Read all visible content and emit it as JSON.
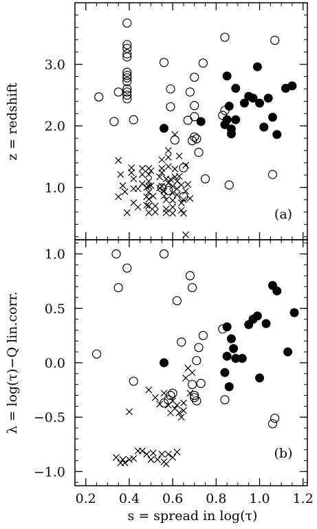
{
  "chart_data": [
    {
      "type": "scatter",
      "panel_label": "(a)",
      "ylabel": "z = redshift",
      "xlabel": "",
      "xlim": [
        0.15,
        1.22
      ],
      "ylim": [
        0.15,
        4.0
      ],
      "x_ticks": [
        0.2,
        0.4,
        0.6,
        0.8,
        1.0,
        1.2
      ],
      "y_ticks": [
        1.0,
        2.0,
        3.0
      ],
      "y_tick_labels": [
        "1.0",
        "2.0",
        "3.0"
      ],
      "series": [
        {
          "marker": "open-circle",
          "points": [
            [
              0.26,
              2.47
            ],
            [
              0.33,
              2.07
            ],
            [
              0.35,
              2.55
            ],
            [
              0.39,
              3.67
            ],
            [
              0.39,
              3.32
            ],
            [
              0.39,
              3.26
            ],
            [
              0.39,
              3.17
            ],
            [
              0.39,
              3.12
            ],
            [
              0.39,
              2.87
            ],
            [
              0.39,
              2.82
            ],
            [
              0.39,
              2.78
            ],
            [
              0.39,
              2.72
            ],
            [
              0.39,
              2.6
            ],
            [
              0.39,
              2.55
            ],
            [
              0.39,
              2.5
            ],
            [
              0.39,
              2.44
            ],
            [
              0.42,
              2.1
            ],
            [
              0.56,
              3.03
            ],
            [
              0.59,
              2.6
            ],
            [
              0.59,
              2.31
            ],
            [
              0.61,
              1.77
            ],
            [
              0.65,
              1.32
            ],
            [
              0.67,
              2.09
            ],
            [
              0.68,
              2.55
            ],
            [
              0.7,
              2.79
            ],
            [
              0.7,
              2.33
            ],
            [
              0.7,
              2.15
            ],
            [
              0.69,
              1.76
            ],
            [
              0.7,
              1.82
            ],
            [
              0.71,
              1.79
            ],
            [
              0.72,
              1.57
            ],
            [
              0.74,
              3.02
            ],
            [
              0.75,
              1.14
            ],
            [
              0.84,
              3.44
            ],
            [
              0.84,
              2.25
            ],
            [
              0.83,
              2.17
            ],
            [
              0.86,
              1.04
            ],
            [
              1.06,
              1.21
            ],
            [
              1.07,
              3.39
            ],
            [
              0.55,
              0.99
            ],
            [
              0.58,
              0.95
            ],
            [
              0.65,
              0.85
            ]
          ]
        },
        {
          "marker": "filled-circle",
          "points": [
            [
              0.56,
              1.96
            ],
            [
              0.73,
              2.07
            ],
            [
              0.85,
              2.81
            ],
            [
              0.85,
              2.1
            ],
            [
              0.86,
              2.32
            ],
            [
              0.84,
              2.02
            ],
            [
              0.87,
              1.95
            ],
            [
              0.87,
              1.87
            ],
            [
              0.89,
              2.1
            ],
            [
              0.89,
              2.61
            ],
            [
              0.93,
              2.37
            ],
            [
              0.95,
              2.48
            ],
            [
              0.97,
              2.45
            ],
            [
              0.99,
              2.96
            ],
            [
              1.0,
              2.37
            ],
            [
              1.02,
              1.98
            ],
            [
              1.04,
              2.45
            ],
            [
              1.06,
              2.14
            ],
            [
              1.08,
              1.86
            ],
            [
              1.12,
              2.61
            ],
            [
              1.15,
              2.65
            ]
          ]
        },
        {
          "marker": "cross",
          "points": [
            [
              0.35,
              1.44
            ],
            [
              0.36,
              1.21
            ],
            [
              0.35,
              0.85
            ],
            [
              0.37,
              1.03
            ],
            [
              0.38,
              0.93
            ],
            [
              0.39,
              0.59
            ],
            [
              0.41,
              1.32
            ],
            [
              0.41,
              1.24
            ],
            [
              0.42,
              1.14
            ],
            [
              0.42,
              0.98
            ],
            [
              0.42,
              0.75
            ],
            [
              0.44,
              0.98
            ],
            [
              0.44,
              0.68
            ],
            [
              0.46,
              1.31
            ],
            [
              0.46,
              1.21
            ],
            [
              0.46,
              1.06
            ],
            [
              0.48,
              1.0
            ],
            [
              0.48,
              0.85
            ],
            [
              0.48,
              0.71
            ],
            [
              0.49,
              1.31
            ],
            [
              0.49,
              1.21
            ],
            [
              0.49,
              1.1
            ],
            [
              0.49,
              1.02
            ],
            [
              0.49,
              0.92
            ],
            [
              0.49,
              0.81
            ],
            [
              0.49,
              0.7
            ],
            [
              0.49,
              0.59
            ],
            [
              0.5,
              1.27
            ],
            [
              0.5,
              1.03
            ],
            [
              0.51,
              0.86
            ],
            [
              0.52,
              0.7
            ],
            [
              0.52,
              0.6
            ],
            [
              0.54,
              1.17
            ],
            [
              0.54,
              0.99
            ],
            [
              0.55,
              1.45
            ],
            [
              0.55,
              1.31
            ],
            [
              0.55,
              1.24
            ],
            [
              0.55,
              1.02
            ],
            [
              0.56,
              0.94
            ],
            [
              0.56,
              0.86
            ],
            [
              0.57,
              1.14
            ],
            [
              0.57,
              0.8
            ],
            [
              0.57,
              0.65
            ],
            [
              0.57,
              0.59
            ],
            [
              0.58,
              1.6
            ],
            [
              0.58,
              1.49
            ],
            [
              0.58,
              1.34
            ],
            [
              0.58,
              1.07
            ],
            [
              0.59,
              1.13
            ],
            [
              0.6,
              1.02
            ],
            [
              0.6,
              0.91
            ],
            [
              0.6,
              0.79
            ],
            [
              0.6,
              0.68
            ],
            [
              0.6,
              0.58
            ],
            [
              0.61,
              1.3
            ],
            [
              0.61,
              1.17
            ],
            [
              0.62,
              1.1
            ],
            [
              0.62,
              0.98
            ],
            [
              0.62,
              0.88
            ],
            [
              0.63,
              1.18
            ],
            [
              0.64,
              1.04
            ],
            [
              0.64,
              0.75
            ],
            [
              0.64,
              0.63
            ],
            [
              0.65,
              0.8
            ],
            [
              0.65,
              0.58
            ],
            [
              0.66,
              0.94
            ],
            [
              0.66,
              0.23
            ],
            [
              0.67,
              1.05
            ],
            [
              0.68,
              0.82
            ],
            [
              0.66,
              1.36
            ],
            [
              0.63,
              1.51
            ],
            [
              0.61,
              1.86
            ]
          ]
        }
      ]
    },
    {
      "type": "scatter",
      "panel_label": "(b)",
      "ylabel": "λ = log(τ)−Q lin.corr.",
      "xlabel": "s = spread in log(τ)",
      "xlim": [
        0.15,
        1.22
      ],
      "ylim": [
        -1.13,
        1.13
      ],
      "x_ticks": [
        0.2,
        0.4,
        0.6,
        0.8,
        1.0,
        1.2
      ],
      "x_tick_labels": [
        "0.2",
        "0.4",
        "0.6",
        "0.8",
        "1.0",
        "1.2"
      ],
      "y_ticks": [
        -1.0,
        -0.5,
        0.0,
        0.5,
        1.0
      ],
      "y_tick_labels": [
        "−1.0",
        "−0.5",
        "0.0",
        "0.5",
        "1.0"
      ],
      "series": [
        {
          "marker": "open-circle",
          "points": [
            [
              0.25,
              0.08
            ],
            [
              0.34,
              1.0
            ],
            [
              0.35,
              0.69
            ],
            [
              0.39,
              0.87
            ],
            [
              0.42,
              -0.17
            ],
            [
              0.56,
              1.0
            ],
            [
              0.56,
              -0.37
            ],
            [
              0.58,
              -0.34
            ],
            [
              0.59,
              -0.3
            ],
            [
              0.6,
              -0.28
            ],
            [
              0.62,
              0.57
            ],
            [
              0.64,
              0.19
            ],
            [
              0.68,
              0.8
            ],
            [
              0.69,
              0.69
            ],
            [
              0.69,
              -0.2
            ],
            [
              0.7,
              -0.3
            ],
            [
              0.7,
              -0.32
            ],
            [
              0.71,
              -0.35
            ],
            [
              0.72,
              0.14
            ],
            [
              0.71,
              0.02
            ],
            [
              0.74,
              0.25
            ],
            [
              0.73,
              -0.19
            ],
            [
              0.83,
              0.31
            ],
            [
              0.84,
              -0.34
            ],
            [
              1.06,
              -0.56
            ],
            [
              1.07,
              -0.51
            ]
          ]
        },
        {
          "marker": "filled-circle",
          "points": [
            [
              0.56,
              0.0
            ],
            [
              0.84,
              -0.09
            ],
            [
              0.85,
              0.06
            ],
            [
              0.85,
              0.33
            ],
            [
              0.86,
              -0.22
            ],
            [
              0.87,
              0.22
            ],
            [
              0.88,
              0.13
            ],
            [
              0.89,
              0.04
            ],
            [
              0.92,
              0.04
            ],
            [
              0.95,
              0.35
            ],
            [
              0.97,
              0.4
            ],
            [
              0.99,
              0.43
            ],
            [
              1.0,
              -0.14
            ],
            [
              1.03,
              0.36
            ],
            [
              1.06,
              0.71
            ],
            [
              1.08,
              0.66
            ],
            [
              1.13,
              0.1
            ],
            [
              1.16,
              0.46
            ]
          ]
        },
        {
          "marker": "cross",
          "points": [
            [
              0.34,
              -0.87
            ],
            [
              0.36,
              -0.92
            ],
            [
              0.37,
              -0.89
            ],
            [
              0.38,
              -0.92
            ],
            [
              0.4,
              -0.89
            ],
            [
              0.42,
              -0.88
            ],
            [
              0.44,
              -0.81
            ],
            [
              0.46,
              -0.81
            ],
            [
              0.48,
              -0.84
            ],
            [
              0.5,
              -0.89
            ],
            [
              0.51,
              -0.83
            ],
            [
              0.53,
              -0.89
            ],
            [
              0.55,
              -0.84
            ],
            [
              0.56,
              -0.91
            ],
            [
              0.57,
              -0.93
            ],
            [
              0.58,
              -0.84
            ],
            [
              0.6,
              -0.87
            ],
            [
              0.62,
              -0.82
            ],
            [
              0.4,
              -0.45
            ],
            [
              0.49,
              -0.25
            ],
            [
              0.52,
              -0.32
            ],
            [
              0.54,
              -0.38
            ],
            [
              0.56,
              -0.28
            ],
            [
              0.58,
              -0.39
            ],
            [
              0.59,
              -0.46
            ],
            [
              0.6,
              -0.35
            ],
            [
              0.61,
              -0.42
            ],
            [
              0.62,
              -0.39
            ],
            [
              0.63,
              -0.46
            ],
            [
              0.64,
              -0.5
            ],
            [
              0.65,
              -0.37
            ],
            [
              0.66,
              -0.14
            ],
            [
              0.67,
              -0.05
            ],
            [
              0.68,
              -0.28
            ],
            [
              0.69,
              -0.09
            ],
            [
              0.65,
              -0.44
            ]
          ]
        }
      ]
    }
  ]
}
